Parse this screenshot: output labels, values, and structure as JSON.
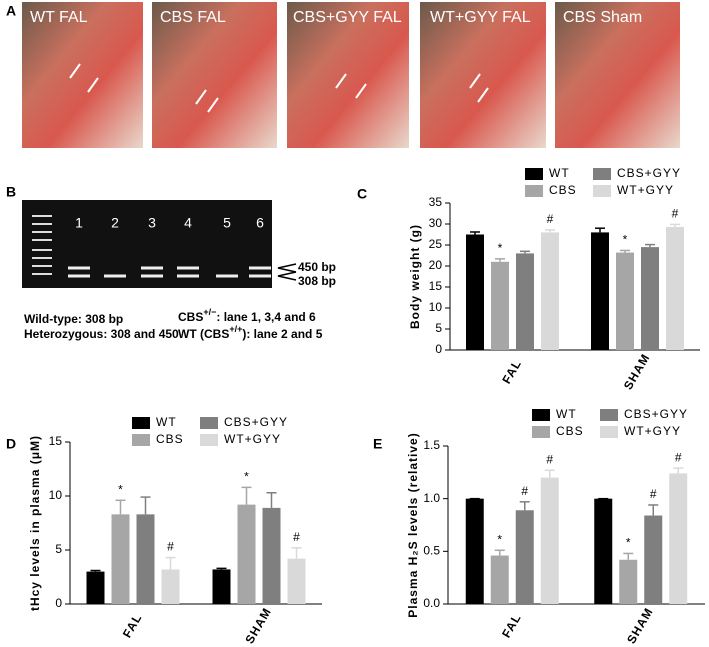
{
  "panel_a": {
    "label": "A",
    "photos": [
      "WT FAL",
      "CBS FAL",
      "CBS+GYY FAL",
      "WT+GYY FAL",
      "CBS Sham"
    ]
  },
  "panel_b": {
    "label": "B",
    "lanes": [
      "1",
      "2",
      "3",
      "4",
      "5",
      "6"
    ],
    "band_labels": [
      "450 bp",
      "308 bp"
    ],
    "notes": [
      "Wild-type: 308 bp",
      "Heterozygous: 308 and 450"
    ],
    "lane_notes": [
      {
        "prefix": "CBS",
        "sup": "+/−",
        "text": ": lane 1, 3,4 and 6"
      },
      {
        "prefix": "WT (CBS",
        "sup": "+/+",
        "text": "): lane 2 and 5"
      }
    ]
  },
  "chart_data": [
    {
      "type": "bar",
      "panel": "C",
      "y_label": "Body weight (g)",
      "categories": [
        "FAL",
        "SHAM"
      ],
      "ylim": [
        0,
        35
      ],
      "yticks": [
        0,
        5,
        10,
        15,
        20,
        25,
        30,
        35
      ],
      "series": [
        {
          "name": "WT",
          "color": "#000000",
          "values": [
            27.5,
            28
          ],
          "errors": [
            0.6,
            1
          ]
        },
        {
          "name": "CBS",
          "color": "#a6a6a6",
          "values": [
            21,
            23.2
          ],
          "errors": [
            0.7,
            0.5
          ],
          "annotations": [
            "*",
            "*"
          ]
        },
        {
          "name": "CBS+GYY",
          "color": "#7f7f7f",
          "values": [
            23,
            24.5
          ],
          "errors": [
            0.5,
            0.6
          ]
        },
        {
          "name": "WT+GYY",
          "color": "#d9d9d9",
          "values": [
            28,
            29.3
          ],
          "errors": [
            0.6,
            0.6
          ],
          "annotations": [
            "#",
            "#"
          ]
        }
      ]
    },
    {
      "type": "bar",
      "panel": "D",
      "y_label": "tHcy levels in plasma (μM)",
      "categories": [
        "FAL",
        "SHAM"
      ],
      "ylim": [
        0,
        15
      ],
      "yticks": [
        0,
        5,
        10,
        15
      ],
      "series": [
        {
          "name": "WT",
          "color": "#000000",
          "values": [
            3.0,
            3.2
          ],
          "errors": [
            0.1,
            0.1
          ]
        },
        {
          "name": "CBS",
          "color": "#a6a6a6",
          "values": [
            8.3,
            9.2
          ],
          "errors": [
            1.3,
            1.6
          ],
          "annotations": [
            "*",
            "*"
          ]
        },
        {
          "name": "CBS+GYY",
          "color": "#7f7f7f",
          "values": [
            8.3,
            8.9
          ],
          "errors": [
            1.6,
            1.4
          ]
        },
        {
          "name": "WT+GYY",
          "color": "#d9d9d9",
          "values": [
            3.2,
            4.2
          ],
          "errors": [
            1.1,
            1.0
          ],
          "annotations": [
            "#",
            "#"
          ]
        }
      ]
    },
    {
      "type": "bar",
      "panel": "E",
      "y_label": "Plasma H₂S levels (relative)",
      "categories": [
        "FAL",
        "SHAM"
      ],
      "ylim": [
        0,
        1.5
      ],
      "yticks": [
        {
          "value": 0,
          "label": "0.0"
        },
        0.5,
        {
          "value": 1,
          "label": "1.0"
        },
        1.5
      ],
      "series": [
        {
          "name": "WT",
          "color": "#000000",
          "values": [
            1,
            1
          ],
          "errors": [
            0,
            0
          ]
        },
        {
          "name": "CBS",
          "color": "#a6a6a6",
          "values": [
            0.46,
            0.42
          ],
          "errors": [
            0.05,
            0.06
          ],
          "annotations": [
            "*",
            "*"
          ]
        },
        {
          "name": "CBS+GYY",
          "color": "#7f7f7f",
          "values": [
            0.89,
            0.84
          ],
          "errors": [
            0.08,
            0.1
          ],
          "annotations": [
            "#",
            "#"
          ]
        },
        {
          "name": "WT+GYY",
          "color": "#d9d9d9",
          "values": [
            1.2,
            1.24
          ],
          "errors": [
            0.07,
            0.05
          ],
          "annotations": [
            "#",
            "#"
          ]
        }
      ]
    }
  ]
}
